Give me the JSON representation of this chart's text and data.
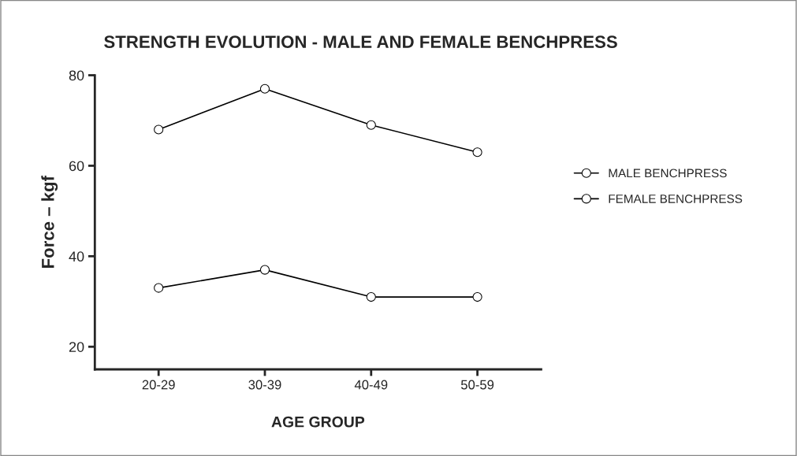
{
  "chart_data": {
    "type": "line",
    "title": "STRENGTH EVOLUTION - MALE AND FEMALE BENCHPRESS",
    "xlabel": "AGE GROUP",
    "ylabel": "Force – kgf",
    "categories": [
      "20-29",
      "30-39",
      "40-49",
      "50-59"
    ],
    "series": [
      {
        "name": "MALE BENCHPRESS",
        "color": "#000000",
        "values": [
          68,
          77,
          69,
          63
        ]
      },
      {
        "name": "FEMALE BENCHPRESS",
        "color": "#000000",
        "values": [
          33,
          37,
          31,
          31
        ]
      }
    ],
    "ylim": [
      15,
      80
    ],
    "yticks": [
      20,
      40,
      60,
      80
    ],
    "grid": false,
    "legend": "right",
    "marker": "circle",
    "line_style": "solid"
  }
}
